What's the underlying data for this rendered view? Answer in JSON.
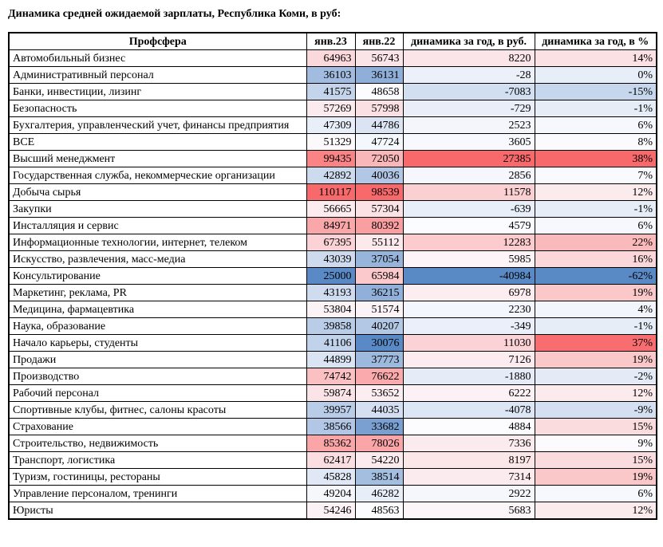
{
  "title": "Динамика средней ожидаемой зарплаты, Республика Коми, в руб:",
  "chart_data": {
    "type": "table",
    "title": "Динамика средней ожидаемой зарплаты, Республика Коми, в руб:",
    "columns": [
      "Профсфера",
      "янв.23",
      "янв.22",
      "динамика за год, в руб.",
      "динамика за год, в %"
    ],
    "rows": [
      [
        "Автомобильный бизнес",
        64963,
        56743,
        8220,
        "14%"
      ],
      [
        "Административный персонал",
        36103,
        36131,
        -28,
        "0%"
      ],
      [
        "Банки, инвестиции, лизинг",
        41575,
        48658,
        -7083,
        "-15%"
      ],
      [
        "Безопасность",
        57269,
        57998,
        -729,
        "-1%"
      ],
      [
        "Бухгалтерия, управленческий учет, финансы предприятия",
        47309,
        44786,
        2523,
        "6%"
      ],
      [
        "ВСЕ",
        51329,
        47724,
        3605,
        "8%"
      ],
      [
        "Высший менеджмент",
        99435,
        72050,
        27385,
        "38%"
      ],
      [
        "Государственная служба, некоммерческие организации",
        42892,
        40036,
        2856,
        "7%"
      ],
      [
        "Добыча сырья",
        110117,
        98539,
        11578,
        "12%"
      ],
      [
        "Закупки",
        56665,
        57304,
        -639,
        "-1%"
      ],
      [
        "Инсталляция и сервис",
        84971,
        80392,
        4579,
        "6%"
      ],
      [
        "Информационные технологии, интернет, телеком",
        67395,
        55112,
        12283,
        "22%"
      ],
      [
        "Искусство, развлечения, масс-медиа",
        43039,
        37054,
        5985,
        "16%"
      ],
      [
        "Консультирование",
        25000,
        65984,
        -40984,
        "-62%"
      ],
      [
        "Маркетинг, реклама, PR",
        43193,
        36215,
        6978,
        "19%"
      ],
      [
        "Медицина, фармацевтика",
        53804,
        51574,
        2230,
        "4%"
      ],
      [
        "Наука, образование",
        39858,
        40207,
        -349,
        "-1%"
      ],
      [
        "Начало карьеры, студенты",
        41106,
        30076,
        11030,
        "37%"
      ],
      [
        "Продажи",
        44899,
        37773,
        7126,
        "19%"
      ],
      [
        "Производство",
        74742,
        76622,
        -1880,
        "-2%"
      ],
      [
        "Рабочий персонал",
        59874,
        53652,
        6222,
        "12%"
      ],
      [
        "Спортивные клубы, фитнес, салоны красоты",
        39957,
        44035,
        -4078,
        "-9%"
      ],
      [
        "Страхование",
        38566,
        33682,
        4884,
        "15%"
      ],
      [
        "Строительство, недвижимость",
        85362,
        78026,
        7336,
        "9%"
      ],
      [
        "Транспорт, логистика",
        62417,
        54220,
        8197,
        "15%"
      ],
      [
        "Туризм, гостиницы, рестораны",
        45828,
        38514,
        7314,
        "19%"
      ],
      [
        "Управление персоналом, тренинги",
        49204,
        46282,
        2922,
        "6%"
      ],
      [
        "Юристы",
        54246,
        48563,
        5683,
        "12%"
      ]
    ],
    "conditional_format": {
      "applies_to": "columns: янв.23, янв.22, динамика за год в руб., динамика за год в %",
      "scale": "3-color, per column",
      "min_color": "#5A8AC6",
      "mid_color": "#FCFCFF",
      "max_color": "#F8696B",
      "midpoint": "50th percentile"
    },
    "layout": {
      "grid": "all black borders",
      "name_column_align": "left",
      "numeric_align": "right"
    }
  }
}
